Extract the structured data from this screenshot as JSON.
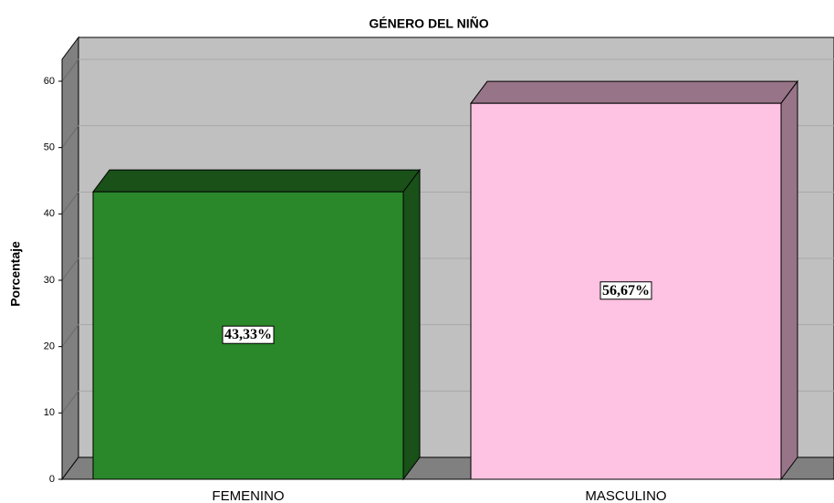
{
  "chart_data": {
    "type": "bar3d",
    "title": "GÉNERO DEL NIÑO",
    "y_label": "Porcentaje",
    "categories": [
      "FEMENINO",
      "MASCULINO"
    ],
    "values": [
      43.33,
      56.67
    ],
    "value_labels": [
      "43,33%",
      "56,67%"
    ],
    "colors": [
      "#2a872a",
      "#fec2e2"
    ],
    "ylim": [
      0,
      63.3
    ],
    "yticks": [
      0,
      10,
      20,
      30,
      40,
      50,
      60
    ],
    "grid": true
  }
}
